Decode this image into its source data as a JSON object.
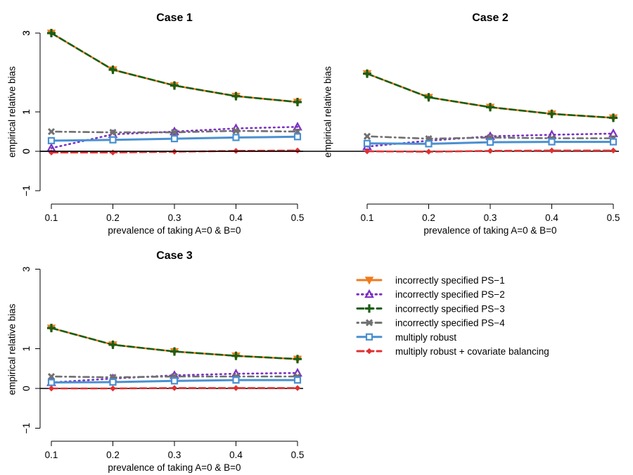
{
  "chart_data": [
    {
      "type": "line",
      "title": "Case 1",
      "xlabel": "prevalence of taking A=0 & B=0",
      "ylabel": "empirical relative bias",
      "x": [
        0.1,
        0.2,
        0.3,
        0.4,
        0.5
      ],
      "x_tick_labels": [
        "0.1",
        "0.2",
        "0.3",
        "0.4",
        "0.5"
      ],
      "y_ticks": [
        -1,
        0,
        1,
        3
      ],
      "y_tick_labels": [
        "−1",
        "0",
        "1",
        "3"
      ],
      "ylim": [
        -1,
        3
      ],
      "series": [
        {
          "name": "incorrectly specified PS−1",
          "values": [
            3.0,
            2.07,
            1.67,
            1.4,
            1.25
          ]
        },
        {
          "name": "incorrectly specified PS−2",
          "values": [
            0.08,
            0.43,
            0.5,
            0.58,
            0.62
          ]
        },
        {
          "name": "incorrectly specified PS−3",
          "values": [
            3.0,
            2.07,
            1.67,
            1.4,
            1.25
          ]
        },
        {
          "name": "incorrectly specified PS−4",
          "values": [
            0.5,
            0.48,
            0.48,
            0.52,
            0.5
          ]
        },
        {
          "name": "multiply robust",
          "values": [
            0.27,
            0.29,
            0.32,
            0.35,
            0.37
          ]
        },
        {
          "name": "multiply robust + covariate balancing",
          "values": [
            -0.03,
            -0.03,
            -0.01,
            0.01,
            0.02
          ]
        }
      ]
    },
    {
      "type": "line",
      "title": "Case 2",
      "xlabel": "prevalence of taking A=0 & B=0",
      "ylabel": "empirical relative bias",
      "x": [
        0.1,
        0.2,
        0.3,
        0.4,
        0.5
      ],
      "x_tick_labels": [
        "0.1",
        "0.2",
        "0.3",
        "0.4",
        "0.5"
      ],
      "y_ticks": [
        -1,
        0,
        1,
        3
      ],
      "y_tick_labels": [
        "−1",
        "0",
        "1",
        "3"
      ],
      "ylim": [
        -1,
        3
      ],
      "series": [
        {
          "name": "incorrectly specified PS−1",
          "values": [
            1.97,
            1.37,
            1.12,
            0.95,
            0.85
          ]
        },
        {
          "name": "incorrectly specified PS−2",
          "values": [
            0.12,
            0.27,
            0.38,
            0.42,
            0.45
          ]
        },
        {
          "name": "incorrectly specified PS−3",
          "values": [
            1.97,
            1.37,
            1.12,
            0.95,
            0.85
          ]
        },
        {
          "name": "incorrectly specified PS−4",
          "values": [
            0.38,
            0.32,
            0.35,
            0.33,
            0.33
          ]
        },
        {
          "name": "multiply robust",
          "values": [
            0.2,
            0.19,
            0.23,
            0.24,
            0.24
          ]
        },
        {
          "name": "multiply robust + covariate balancing",
          "values": [
            0.0,
            -0.01,
            0.01,
            0.02,
            0.02
          ]
        }
      ]
    },
    {
      "type": "line",
      "title": "Case 3",
      "xlabel": "prevalence of taking A=0 & B=0",
      "ylabel": "empirical relative bias",
      "x": [
        0.1,
        0.2,
        0.3,
        0.4,
        0.5
      ],
      "x_tick_labels": [
        "0.1",
        "0.2",
        "0.3",
        "0.4",
        "0.5"
      ],
      "y_ticks": [
        -1,
        0,
        1,
        3
      ],
      "y_tick_labels": [
        "−1",
        "0",
        "1",
        "3"
      ],
      "ylim": [
        -1,
        3
      ],
      "series": [
        {
          "name": "incorrectly specified PS−1",
          "values": [
            1.52,
            1.1,
            0.93,
            0.82,
            0.74
          ]
        },
        {
          "name": "incorrectly specified PS−2",
          "values": [
            0.15,
            0.25,
            0.33,
            0.37,
            0.39
          ]
        },
        {
          "name": "incorrectly specified PS−3",
          "values": [
            1.52,
            1.1,
            0.93,
            0.82,
            0.74
          ]
        },
        {
          "name": "incorrectly specified PS−4",
          "values": [
            0.3,
            0.28,
            0.3,
            0.3,
            0.3
          ]
        },
        {
          "name": "multiply robust",
          "values": [
            0.15,
            0.16,
            0.19,
            0.21,
            0.21
          ]
        },
        {
          "name": "multiply robust + covariate balancing",
          "values": [
            0.0,
            0.0,
            0.01,
            0.01,
            0.01
          ]
        }
      ]
    }
  ],
  "legend": {
    "items": [
      {
        "label": "incorrectly specified PS−1",
        "color": "#F07A1C",
        "marker": "triangle-down-filled",
        "dash": "solid"
      },
      {
        "label": "incorrectly specified PS−2",
        "color": "#7B2FC4",
        "marker": "triangle-up-open",
        "dash": "dotted"
      },
      {
        "label": "incorrectly specified PS−3",
        "color": "#1A5E14",
        "marker": "plus",
        "dash": "dashed"
      },
      {
        "label": "incorrectly specified PS−4",
        "color": "#707070",
        "marker": "cross",
        "dash": "dotdash"
      },
      {
        "label": "multiply robust",
        "color": "#4A90D0",
        "marker": "square-open",
        "dash": "solid"
      },
      {
        "label": "multiply robust + covariate balancing",
        "color": "#E03030",
        "marker": "diamond-filled",
        "dash": "dashed"
      }
    ]
  }
}
